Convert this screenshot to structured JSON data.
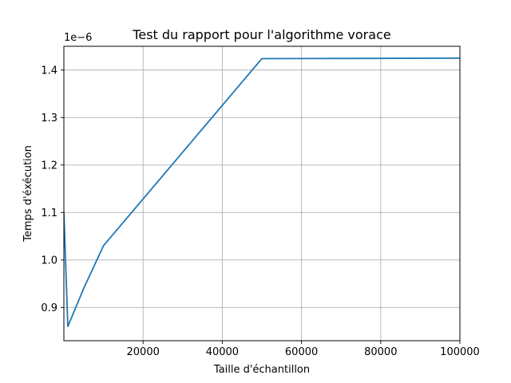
{
  "chart_data": {
    "type": "line",
    "title": "Test du rapport pour l'algorithme vorace",
    "xlabel": "Taille d'échantillon",
    "ylabel": "Temps d'éxécution",
    "y_offset_label": "1e−6",
    "xlim": [
      0,
      100000
    ],
    "ylim": [
      0.83,
      1.45
    ],
    "y_scale_exponent": -6,
    "grid": true,
    "x_ticks": [
      20000,
      40000,
      60000,
      80000,
      100000
    ],
    "x_tick_labels": [
      "20000",
      "40000",
      "60000",
      "80000",
      "100000"
    ],
    "y_ticks": [
      0.9,
      1.0,
      1.1,
      1.2,
      1.3,
      1.4
    ],
    "y_tick_labels": [
      "0.9",
      "1.0",
      "1.1",
      "1.2",
      "1.3",
      "1.4"
    ],
    "series": [
      {
        "color": "#1f77b4",
        "x": [
          0,
          1000,
          5000,
          10000,
          50000,
          100000
        ],
        "y": [
          1.1,
          0.86,
          0.94,
          1.03,
          1.424,
          1.425
        ]
      }
    ]
  }
}
